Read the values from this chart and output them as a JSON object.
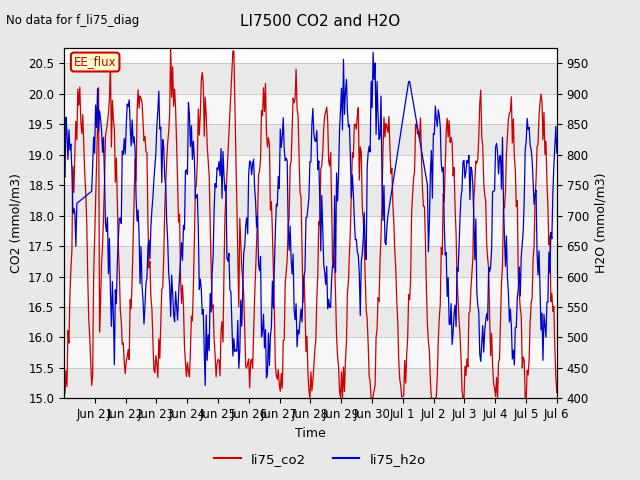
{
  "title": "LI7500 CO2 and H2O",
  "subtitle": "No data for f_li75_diag",
  "xlabel": "Time",
  "ylabel_left": "CO2 (mmol/m3)",
  "ylabel_right": "H2O (mmol/m3)",
  "ylim_left": [
    15.0,
    20.75
  ],
  "ylim_right": [
    400,
    975
  ],
  "yticks_left": [
    15.0,
    15.5,
    16.0,
    16.5,
    17.0,
    17.5,
    18.0,
    18.5,
    19.0,
    19.5,
    20.0,
    20.5
  ],
  "yticks_right": [
    400,
    450,
    500,
    550,
    600,
    650,
    700,
    750,
    800,
    850,
    900,
    950
  ],
  "tick_labels": [
    "Jun 21",
    "Jun 22",
    "Jun 23",
    "Jun 24",
    "Jun 25",
    "Jun 26",
    "Jun 27",
    "Jun 28",
    "Jun 29",
    "Jun 30",
    "Jul 1",
    "Jul 2",
    "Jul 3",
    "Jul 4",
    "Jul 5",
    "Jul 6"
  ],
  "tick_positions": [
    1,
    2,
    3,
    4,
    5,
    6,
    7,
    8,
    9,
    10,
    11,
    12,
    13,
    14,
    15,
    16
  ],
  "legend_labels": [
    "li75_co2",
    "li75_h2o"
  ],
  "legend_colors": [
    "#cc0000",
    "#0000cc"
  ],
  "annotation_text": "EE_flux",
  "annotation_color": "#cc0000",
  "bg_color": "#e8e8e8",
  "plot_bg_color": "#ffffff",
  "co2_color": "#cc0000",
  "h2o_color": "#0000cc",
  "n_points": 500,
  "xlim": [
    0,
    16
  ]
}
